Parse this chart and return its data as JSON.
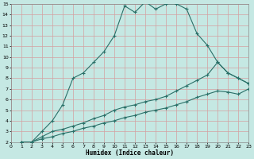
{
  "xlabel": "Humidex (Indice chaleur)",
  "bg_color": "#c5e8e3",
  "grid_color": "#d4a0a0",
  "line_color": "#2a7068",
  "xlim": [
    0,
    23
  ],
  "ylim": [
    2,
    15
  ],
  "xticks": [
    0,
    1,
    2,
    3,
    4,
    5,
    6,
    7,
    8,
    9,
    10,
    11,
    12,
    13,
    14,
    15,
    16,
    17,
    18,
    19,
    20,
    21,
    22,
    23
  ],
  "yticks": [
    2,
    3,
    4,
    5,
    6,
    7,
    8,
    9,
    10,
    11,
    12,
    13,
    14,
    15
  ],
  "line1_x": [
    1,
    2,
    3,
    4,
    5,
    6,
    7,
    8,
    9,
    10,
    11,
    12,
    13,
    14,
    15,
    16,
    17,
    18,
    19,
    20,
    21,
    22,
    23
  ],
  "line1_y": [
    2.0,
    2.0,
    3.0,
    4.0,
    5.5,
    8.0,
    8.5,
    9.5,
    10.5,
    12.0,
    14.8,
    14.2,
    15.2,
    14.5,
    15.0,
    15.0,
    14.5,
    12.2,
    11.1,
    9.5,
    8.5,
    8.0,
    7.5
  ],
  "line2_x": [
    1,
    2,
    3,
    4,
    5,
    6,
    7,
    8,
    9,
    10,
    11,
    12,
    13,
    14,
    15,
    16,
    17,
    18,
    19,
    20,
    21,
    22,
    23
  ],
  "line2_y": [
    2.0,
    2.0,
    2.5,
    3.0,
    3.2,
    3.5,
    3.8,
    4.2,
    4.5,
    5.0,
    5.3,
    5.5,
    5.8,
    6.0,
    6.3,
    6.8,
    7.3,
    7.8,
    8.3,
    9.5,
    8.5,
    8.0,
    7.5
  ],
  "line3_x": [
    1,
    2,
    3,
    4,
    5,
    6,
    7,
    8,
    9,
    10,
    11,
    12,
    13,
    14,
    15,
    16,
    17,
    18,
    19,
    20,
    21,
    22,
    23
  ],
  "line3_y": [
    2.0,
    2.0,
    2.3,
    2.5,
    2.8,
    3.0,
    3.3,
    3.5,
    3.8,
    4.0,
    4.3,
    4.5,
    4.8,
    5.0,
    5.2,
    5.5,
    5.8,
    6.2,
    6.5,
    6.8,
    6.7,
    6.5,
    7.0
  ]
}
